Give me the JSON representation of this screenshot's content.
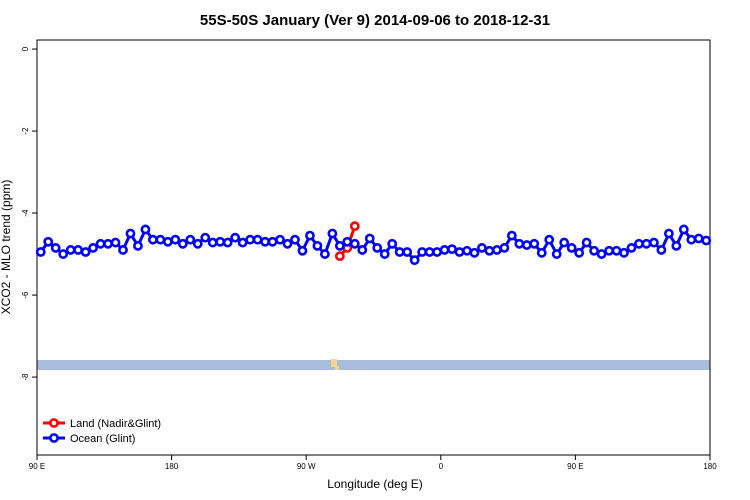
{
  "chart_data": {
    "type": "line",
    "title": "55S-50S January (Ver 9)   2014-09-06 to 2018-12-31",
    "xlabel": "Longitude (deg E)",
    "ylabel": "XCO2 - MLO trend (ppm)",
    "xlim": [
      90,
      540
    ],
    "ylim": [
      -9.9,
      0.22
    ],
    "xticks": [
      {
        "value": 90,
        "label": "90 E"
      },
      180,
      {
        "value": 270,
        "label": "90 W"
      },
      {
        "value": 360,
        "label": "0"
      },
      {
        "value": 450,
        "label": "90 E"
      },
      {
        "value": 540,
        "label": "180"
      }
    ],
    "yticks": [
      -8,
      -6,
      -4,
      -2,
      0
    ],
    "legend": "bottom-left",
    "series": [
      {
        "name": "Land (Nadir&Glint)",
        "color": "#ff0000",
        "x": [
          292.5,
          297.5,
          302.5
        ],
        "values": [
          -5.05,
          -4.85,
          -4.32
        ]
      },
      {
        "name": "Ocean (Glint)",
        "color": "#0000ff",
        "x": [
          92.5,
          97.5,
          102.5,
          107.5,
          112.5,
          117.5,
          122.5,
          127.5,
          132.5,
          137.5,
          142.5,
          147.5,
          152.5,
          157.5,
          162.5,
          167.5,
          172.5,
          177.5,
          182.5,
          187.5,
          192.5,
          197.5,
          202.5,
          207.5,
          212.5,
          217.5,
          222.5,
          227.5,
          232.5,
          237.5,
          242.5,
          247.5,
          252.5,
          257.5,
          262.5,
          267.5,
          272.5,
          277.5,
          282.5,
          287.5,
          292.5,
          297.5,
          302.5,
          307.5,
          312.5,
          317.5,
          322.5,
          327.5,
          332.5,
          337.5,
          342.5,
          347.5,
          352.5,
          357.5,
          362.5,
          367.5,
          372.5,
          377.5,
          382.5,
          387.5,
          392.5,
          397.5,
          402.5,
          407.5,
          412.5,
          417.5,
          422.5,
          427.5,
          432.5,
          437.5,
          442.5,
          447.5,
          452.5,
          457.5,
          462.5,
          467.5,
          472.5,
          477.5,
          482.5,
          487.5,
          492.5,
          497.5,
          502.5,
          507.5,
          512.5,
          517.5,
          522.5,
          527.5,
          532.5,
          537.5
        ],
        "values": [
          -4.95,
          -4.7,
          -4.85,
          -5.0,
          -4.9,
          -4.9,
          -4.95,
          -4.85,
          -4.75,
          -4.75,
          -4.72,
          -4.9,
          -4.5,
          -4.8,
          -4.4,
          -4.65,
          -4.65,
          -4.7,
          -4.65,
          -4.75,
          -4.65,
          -4.75,
          -4.6,
          -4.72,
          -4.7,
          -4.72,
          -4.6,
          -4.72,
          -4.65,
          -4.65,
          -4.7,
          -4.7,
          -4.65,
          -4.75,
          -4.65,
          -4.92,
          -4.55,
          -4.8,
          -5.0,
          -4.5,
          -4.8,
          -4.7,
          -4.75,
          -4.9,
          -4.62,
          -4.85,
          -5.0,
          -4.75,
          -4.95,
          -4.95,
          -5.15,
          -4.95,
          -4.95,
          -4.95,
          -4.9,
          -4.88,
          -4.95,
          -4.92,
          -4.97,
          -4.85,
          -4.92,
          -4.9,
          -4.85,
          -4.55,
          -4.75,
          -4.78,
          -4.75,
          -4.97,
          -4.65,
          -5.0,
          -4.72,
          -4.85,
          -4.97,
          -4.72,
          -4.92,
          -5.0,
          -4.92,
          -4.92,
          -4.97,
          -4.85,
          -4.75,
          -4.75,
          -4.72,
          -4.9,
          -4.5,
          -4.8,
          -4.4,
          -4.65,
          -4.62,
          -4.67
        ]
      }
    ]
  }
}
